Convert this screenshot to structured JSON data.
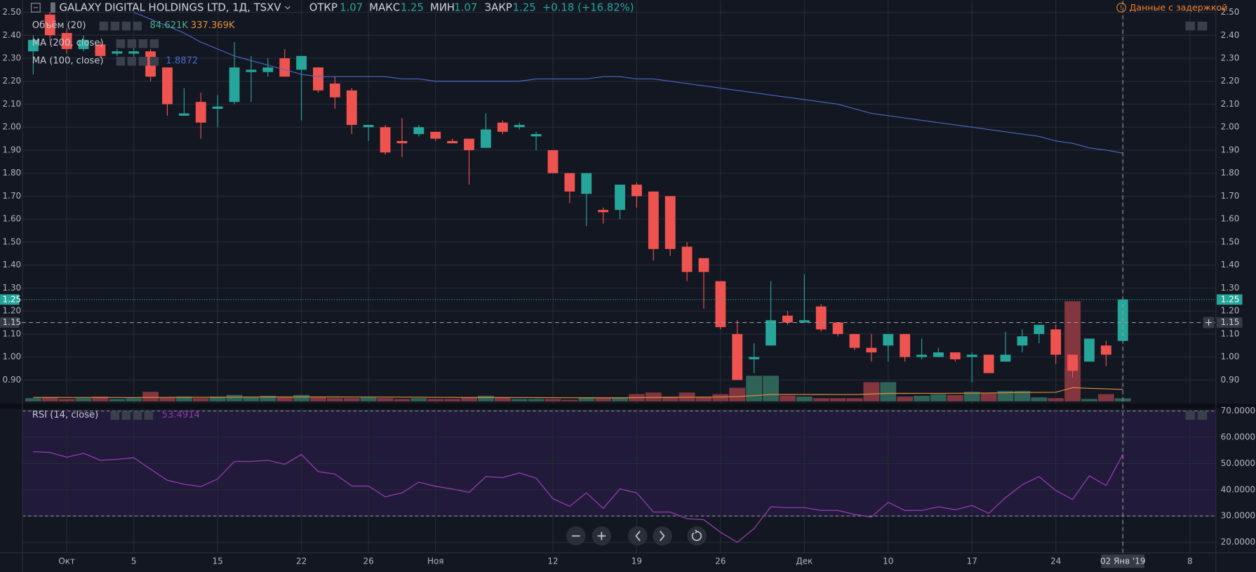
{
  "header": {
    "symbol": "GALAXY DIGITAL HOLDINGS LTD, 1Д, TSXV",
    "open_label": "ОТКР",
    "open": "1.07",
    "high_label": "МАКС",
    "high": "1.25",
    "low_label": "МИН",
    "low": "1.07",
    "close_label": "ЗАКР",
    "close": "1.25",
    "change": "+0.18 (+16.82%)",
    "delay_notice": "Данные с задержкой"
  },
  "chart_data": [
    {
      "type": "candlestick",
      "categories": [
        null,
        null,
        "Окт",
        null,
        null,
        null,
        "5",
        null,
        null,
        null,
        null,
        "15",
        null,
        null,
        null,
        null,
        "22",
        null,
        null,
        null,
        "26",
        null,
        null,
        null,
        "Ноя",
        null,
        null,
        null,
        null,
        null,
        null,
        "12",
        null,
        null,
        null,
        null,
        "19",
        null,
        null,
        null,
        null,
        "26",
        null,
        null,
        null,
        null,
        "Дек",
        null,
        null,
        null,
        null,
        "10",
        null,
        null,
        null,
        null,
        "17",
        null,
        null,
        null,
        null,
        "24",
        null,
        null,
        null,
        "02 Янв '19",
        null,
        null,
        null,
        "8"
      ],
      "open": [
        2.33,
        2.49,
        2.41,
        2.34,
        2.36,
        2.32,
        2.32,
        2.33,
        2.26,
        2.05,
        2.11,
        2.08,
        2.11,
        2.24,
        2.24,
        2.3,
        2.25,
        2.26,
        2.19,
        2.16,
        2.0,
        2.0,
        1.94,
        1.97,
        1.98,
        1.94,
        1.95,
        1.91,
        2.02,
        2.0,
        1.96,
        1.9,
        1.8,
        1.71,
        1.64,
        1.64,
        1.75,
        1.72,
        1.7,
        1.48,
        1.43,
        1.33,
        1.1,
        0.99,
        1.05,
        1.18,
        1.15,
        1.22,
        1.15,
        1.1,
        1.04,
        1.05,
        1.1,
        1.0,
        1.0,
        1.02,
        1.0,
        1.01,
        0.98,
        1.05,
        1.1,
        1.12,
        1.01,
        0.98,
        1.05,
        1.07,
        null,
        null,
        null,
        null
      ],
      "high": [
        2.4,
        2.5,
        2.43,
        2.4,
        2.37,
        2.34,
        2.35,
        2.34,
        2.26,
        2.17,
        2.15,
        2.14,
        2.37,
        2.31,
        2.3,
        2.34,
        2.31,
        2.26,
        2.22,
        2.17,
        2.01,
        2.01,
        2.04,
        2.01,
        1.98,
        1.95,
        1.95,
        2.06,
        2.03,
        2.02,
        1.98,
        1.9,
        1.8,
        1.8,
        1.65,
        1.75,
        1.76,
        1.72,
        1.7,
        1.5,
        1.43,
        1.33,
        1.16,
        1.06,
        1.33,
        1.2,
        1.36,
        1.23,
        1.15,
        1.1,
        1.1,
        1.1,
        1.1,
        1.08,
        1.04,
        1.02,
        1.02,
        1.01,
        1.11,
        1.12,
        1.14,
        1.14,
        1.01,
        1.08,
        1.07,
        1.25,
        null,
        null,
        null,
        null
      ],
      "low": [
        2.23,
        2.38,
        2.32,
        2.33,
        2.3,
        2.31,
        2.3,
        2.2,
        2.05,
        2.05,
        1.95,
        2.0,
        2.1,
        2.11,
        2.22,
        2.22,
        2.03,
        2.15,
        2.08,
        1.97,
        1.94,
        1.88,
        1.87,
        1.96,
        1.94,
        1.93,
        1.75,
        1.91,
        1.97,
        1.99,
        1.9,
        1.8,
        1.67,
        1.57,
        1.58,
        1.6,
        1.65,
        1.42,
        1.44,
        1.33,
        1.21,
        1.12,
        0.9,
        0.93,
        1.05,
        1.14,
        1.15,
        1.11,
        1.09,
        1.03,
        0.98,
        0.98,
        0.98,
        0.99,
        1.0,
        0.98,
        0.89,
        0.93,
        0.98,
        1.02,
        1.06,
        0.97,
        0.91,
        0.98,
        0.96,
        1.07,
        null,
        null,
        null,
        null
      ],
      "close": [
        2.38,
        2.4,
        2.34,
        2.38,
        2.31,
        2.33,
        2.33,
        2.22,
        2.1,
        2.06,
        2.02,
        2.09,
        2.26,
        2.25,
        2.26,
        2.22,
        2.31,
        2.16,
        2.13,
        2.01,
        2.01,
        1.89,
        1.93,
        2.0,
        1.95,
        1.93,
        1.9,
        1.99,
        1.98,
        2.01,
        1.97,
        1.8,
        1.72,
        1.8,
        1.63,
        1.75,
        1.7,
        1.47,
        1.47,
        1.37,
        1.37,
        1.13,
        0.9,
        1.0,
        1.16,
        1.15,
        1.16,
        1.12,
        1.1,
        1.04,
        1.02,
        1.1,
        1.0,
        1.01,
        1.02,
        0.99,
        1.01,
        0.93,
        1.01,
        1.09,
        1.14,
        1.01,
        0.94,
        1.08,
        1.01,
        1.25,
        null,
        null,
        null,
        null
      ],
      "up_color": "#26a69a",
      "down_color": "#ef5350",
      "volume": {
        "name": "Объём (20)",
        "values": [
          90000,
          112500,
          67500,
          90000,
          135000,
          67500,
          90000,
          270000,
          112500,
          135000,
          90000,
          135000,
          180000,
          135000,
          157500,
          135000,
          180000,
          112500,
          90000,
          90000,
          112500,
          90000,
          67500,
          90000,
          67500,
          67500,
          112500,
          157500,
          112500,
          67500,
          67500,
          67500,
          45000,
          112500,
          90000,
          112500,
          202500,
          247500,
          135000,
          247500,
          135000,
          202500,
          382500,
          720000,
          720000,
          157500,
          135000,
          90000,
          90000,
          90000,
          540000,
          540000,
          135000,
          157500,
          202500,
          180000,
          270000,
          225000,
          292500,
          292500,
          112500,
          90000,
          2812500,
          67500,
          202500,
          84621,
          null,
          null,
          null,
          null
        ],
        "value_label": "84.621K",
        "ma_values": [
          112000,
          111000,
          110000,
          109000,
          110000,
          109000,
          108000,
          112000,
          113000,
          114000,
          114000,
          115000,
          118000,
          119000,
          121000,
          122000,
          124000,
          124000,
          123000,
          122000,
          121000,
          119000,
          117000,
          116000,
          113000,
          111000,
          110000,
          111000,
          110000,
          108000,
          106000,
          104000,
          102000,
          102000,
          101000,
          101000,
          104000,
          110000,
          111000,
          116000,
          118000,
          122000,
          134000,
          162000,
          190000,
          192000,
          193000,
          192000,
          191000,
          190000,
          207000,
          224000,
          224000,
          225000,
          226000,
          227000,
          231000,
          236000,
          243000,
          250000,
          253000,
          255000,
          385000,
          365000,
          350000,
          337369,
          null,
          null,
          null,
          null
        ],
        "ma_value_label": "337.369K",
        "up_color": "#2f6358",
        "down_color": "#83363f",
        "ma_color": "#e0913a",
        "label_color": "#4caf8f"
      },
      "series": [
        {
          "name": "MA (200, close)",
          "color": "#8b1e24"
        },
        {
          "name": "MA (100, close)",
          "color": "#4a6bc4",
          "values": [
            null,
            null,
            null,
            null,
            null,
            null,
            2.5,
            2.47,
            2.44,
            2.41,
            2.37,
            2.34,
            2.31,
            2.29,
            2.27,
            2.25,
            2.23,
            2.22,
            2.22,
            2.22,
            2.22,
            2.22,
            2.21,
            2.21,
            2.2,
            2.2,
            2.2,
            2.2,
            2.2,
            2.2,
            2.21,
            2.21,
            2.21,
            2.21,
            2.22,
            2.22,
            2.21,
            2.21,
            2.2,
            2.19,
            2.18,
            2.17,
            2.16,
            2.15,
            2.14,
            2.13,
            2.12,
            2.11,
            2.1,
            2.08,
            2.06,
            2.05,
            2.04,
            2.03,
            2.02,
            2.01,
            2.0,
            1.99,
            1.98,
            1.97,
            1.96,
            1.94,
            1.93,
            1.91,
            1.9,
            1.8872,
            null,
            null,
            null,
            null
          ],
          "value_label": "1.8872"
        }
      ],
      "ylim": [
        0.8,
        2.55
      ],
      "yticks": [
        {
          "value": 0.9,
          "label": "0.90"
        },
        {
          "value": 1.0,
          "label": "1.00"
        },
        {
          "value": 1.1,
          "label": "1.10"
        },
        {
          "value": 1.2,
          "label": "1.20"
        },
        {
          "value": 1.3,
          "label": "1.30"
        },
        {
          "value": 1.4,
          "label": "1.40"
        },
        {
          "value": 1.5,
          "label": "1.50"
        },
        {
          "value": 1.6,
          "label": "1.60"
        },
        {
          "value": 1.7,
          "label": "1.70"
        },
        {
          "value": 1.8,
          "label": "1.80"
        },
        {
          "value": 1.9,
          "label": "1.90"
        },
        {
          "value": 2.0,
          "label": "2.00"
        },
        {
          "value": 2.1,
          "label": "2.10"
        },
        {
          "value": 2.2,
          "label": "2.20"
        },
        {
          "value": 2.3,
          "label": "2.30"
        },
        {
          "value": 2.4,
          "label": "2.40"
        },
        {
          "value": 2.5,
          "label": "2.50"
        }
      ],
      "last_price": {
        "value": 1.25,
        "label": "1.25"
      },
      "crosshair": {
        "value": 1.15,
        "label": "1.15"
      },
      "grid": true
    },
    {
      "type": "line",
      "name": "RSI (14, close)",
      "color": "#8f3ba7",
      "values": [
        54.5,
        54.2,
        52.4,
        53.9,
        51.2,
        51.6,
        52.2,
        47.8,
        43.6,
        42.1,
        41.2,
        44.1,
        50.8,
        50.8,
        51.2,
        49.7,
        53.4,
        46.9,
        46.0,
        41.4,
        41.4,
        37.3,
        38.8,
        42.9,
        41.3,
        40.3,
        39.0,
        45.0,
        44.6,
        46.4,
        44.4,
        36.6,
        33.7,
        38.8,
        32.9,
        40.3,
        38.8,
        31.5,
        31.5,
        29.0,
        28.6,
        23.8,
        20.0,
        25.2,
        33.5,
        33.2,
        33.2,
        32.1,
        32.1,
        30.6,
        29.6,
        35.2,
        32.1,
        32.1,
        33.5,
        32.4,
        34.0,
        31.0,
        37.0,
        41.9,
        45.0,
        39.7,
        36.3,
        45.3,
        41.6,
        53.4914,
        null,
        null,
        null,
        null
      ],
      "value_label": "53.4914",
      "bands": [
        30,
        70
      ],
      "ylim": [
        16,
        70.3
      ],
      "yticks": [
        {
          "value": 20,
          "label": "20.0000"
        },
        {
          "value": 30,
          "label": "30.0000"
        },
        {
          "value": 40,
          "label": "40.0000"
        },
        {
          "value": 50,
          "label": "50.0000"
        },
        {
          "value": 60,
          "label": "60.0000"
        },
        {
          "value": 70,
          "label": "70.0000"
        }
      ],
      "grid": true
    }
  ]
}
